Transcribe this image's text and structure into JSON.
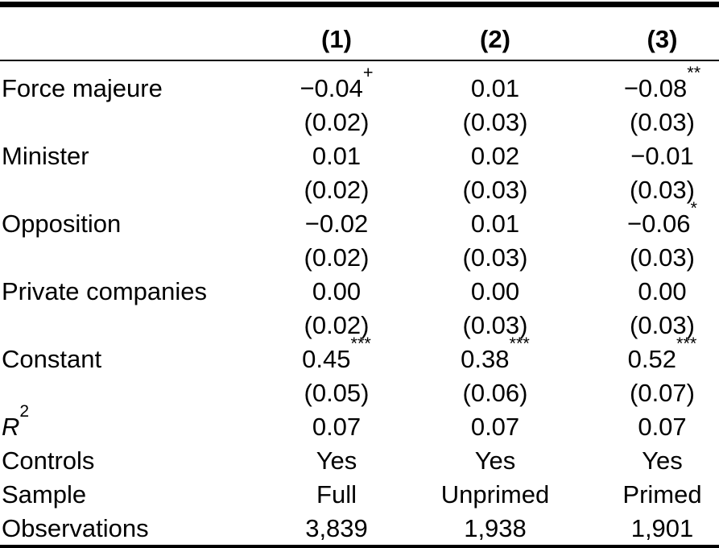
{
  "table": {
    "header": {
      "corner": "",
      "columns": [
        "(1)",
        "(2)",
        "(3)"
      ]
    },
    "coefficient_rows": [
      {
        "label": "Force majeure",
        "estimates": [
          {
            "value": "−0.04",
            "sig": "+"
          },
          {
            "value": "0.01",
            "sig": ""
          },
          {
            "value": "−0.08",
            "sig": "**"
          }
        ],
        "std_errors": [
          "(0.02)",
          "(0.03)",
          "(0.03)"
        ]
      },
      {
        "label": "Minister",
        "estimates": [
          {
            "value": "0.01",
            "sig": ""
          },
          {
            "value": "0.02",
            "sig": ""
          },
          {
            "value": "−0.01",
            "sig": ""
          }
        ],
        "std_errors": [
          "(0.02)",
          "(0.03)",
          "(0.03)"
        ]
      },
      {
        "label": "Opposition",
        "estimates": [
          {
            "value": "−0.02",
            "sig": ""
          },
          {
            "value": "0.01",
            "sig": ""
          },
          {
            "value": "−0.06",
            "sig": "*"
          }
        ],
        "std_errors": [
          "(0.02)",
          "(0.03)",
          "(0.03)"
        ]
      },
      {
        "label": "Private companies",
        "estimates": [
          {
            "value": "0.00",
            "sig": ""
          },
          {
            "value": "0.00",
            "sig": ""
          },
          {
            "value": "0.00",
            "sig": ""
          }
        ],
        "std_errors": [
          "(0.02)",
          "(0.03)",
          "(0.03)"
        ]
      },
      {
        "label": "Constant",
        "estimates": [
          {
            "value": "0.45",
            "sig": "***"
          },
          {
            "value": "0.38",
            "sig": "***"
          },
          {
            "value": "0.52",
            "sig": "***"
          }
        ],
        "std_errors": [
          "(0.05)",
          "(0.06)",
          "(0.07)"
        ]
      }
    ],
    "stat_rows": [
      {
        "label": "R",
        "label_sup": "2",
        "values": [
          "0.07",
          "0.07",
          "0.07"
        ]
      },
      {
        "label": "Controls",
        "values": [
          "Yes",
          "Yes",
          "Yes"
        ]
      },
      {
        "label": "Sample",
        "values": [
          "Full",
          "Unprimed",
          "Primed"
        ]
      },
      {
        "label": "Observations",
        "values": [
          "3,839",
          "1,938",
          "1,901"
        ]
      }
    ]
  }
}
